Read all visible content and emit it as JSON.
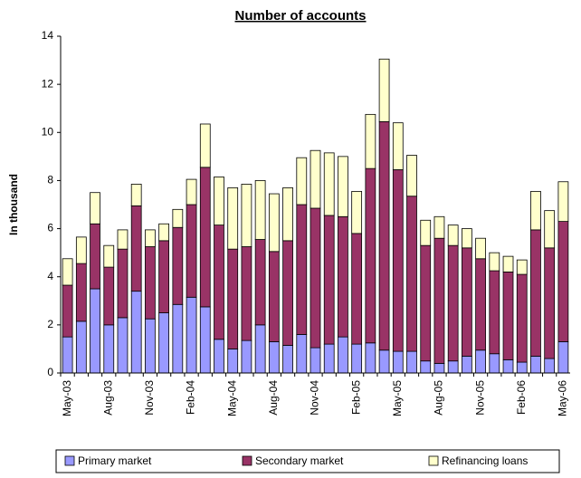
{
  "chart_data": {
    "type": "stacked-bar",
    "title": "Number of accounts",
    "y_label": "In thousand",
    "categories": [
      "May-03",
      null,
      null,
      "Aug-03",
      null,
      null,
      "Nov-03",
      null,
      null,
      "Feb-04",
      null,
      null,
      "May-04",
      null,
      null,
      "Aug-04",
      null,
      null,
      "Nov-04",
      null,
      null,
      "Feb-05",
      null,
      null,
      "May-05",
      null,
      null,
      "Aug-05",
      null,
      null,
      "Nov-05",
      null,
      null,
      "Feb-06",
      null,
      null,
      "May-06"
    ],
    "series": [
      {
        "name": "Primary market",
        "color": "#9999ff",
        "values": [
          1.5,
          2.15,
          3.5,
          2.0,
          2.3,
          3.4,
          2.25,
          2.5,
          2.85,
          3.15,
          2.75,
          1.4,
          1.0,
          1.35,
          2.0,
          1.3,
          1.15,
          1.6,
          1.05,
          1.2,
          1.5,
          1.2,
          1.25,
          0.95,
          0.9,
          0.9,
          0.5,
          0.4,
          0.5,
          0.7,
          0.95,
          0.8,
          0.55,
          0.45,
          0.7,
          0.6,
          1.3
        ]
      },
      {
        "name": "Secondary market",
        "color": "#993366",
        "values": [
          2.15,
          2.4,
          2.7,
          2.4,
          2.85,
          3.55,
          3.0,
          3.0,
          3.2,
          3.85,
          5.8,
          4.75,
          4.15,
          3.9,
          3.55,
          3.75,
          4.35,
          5.4,
          5.8,
          5.35,
          5.0,
          4.6,
          7.25,
          9.5,
          7.55,
          6.45,
          4.8,
          5.2,
          4.8,
          4.5,
          3.8,
          3.45,
          3.65,
          3.65,
          5.25,
          4.6,
          5.0
        ]
      },
      {
        "name": "Refinancing loans",
        "color": "#ffffcc",
        "values": [
          1.1,
          1.1,
          1.3,
          0.9,
          0.8,
          0.9,
          0.7,
          0.7,
          0.75,
          1.05,
          1.8,
          2.0,
          2.55,
          2.6,
          2.45,
          2.4,
          2.2,
          1.95,
          2.4,
          2.6,
          2.5,
          1.75,
          2.25,
          2.6,
          1.95,
          1.7,
          1.05,
          0.9,
          0.85,
          0.8,
          0.85,
          0.75,
          0.65,
          0.6,
          1.6,
          1.55,
          1.65
        ]
      }
    ],
    "ylim": [
      0,
      14
    ],
    "yticks": [
      0,
      2,
      4,
      6,
      8,
      10,
      12,
      14
    ],
    "grid": false,
    "legend": "bottom"
  }
}
